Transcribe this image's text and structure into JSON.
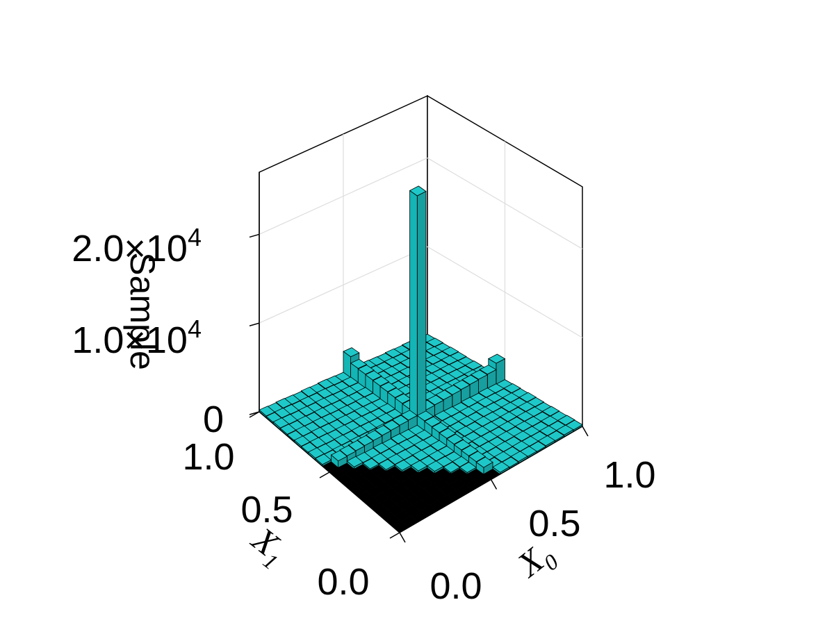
{
  "chart_data": {
    "type": "bar3d",
    "title": "",
    "xlabel": "X",
    "xlabel_sub": "0",
    "ylabel": "X",
    "ylabel_sub": "1",
    "zlabel": "Sample",
    "x_ticks": [
      "0.0",
      "0.5",
      "1.0"
    ],
    "y_ticks": [
      "0.0",
      "0.5",
      "1.0"
    ],
    "z_ticks": [
      {
        "value": 0,
        "base": "0",
        "exp": ""
      },
      {
        "value": 10000,
        "base": "1.0×10",
        "exp": "4"
      },
      {
        "value": 20000,
        "base": "2.0×10",
        "exp": "4"
      }
    ],
    "xlim": [
      0,
      1
    ],
    "ylim": [
      0,
      1
    ],
    "zlim": [
      0,
      27000
    ],
    "grid": true,
    "bins": 20,
    "bar_color": "#1ec8c8",
    "edge_color": "#000000",
    "peak": {
      "x": 0.5,
      "y": 0.5,
      "value": 26000
    },
    "ridge_edge_value": 2500,
    "typical_value": 150
  }
}
